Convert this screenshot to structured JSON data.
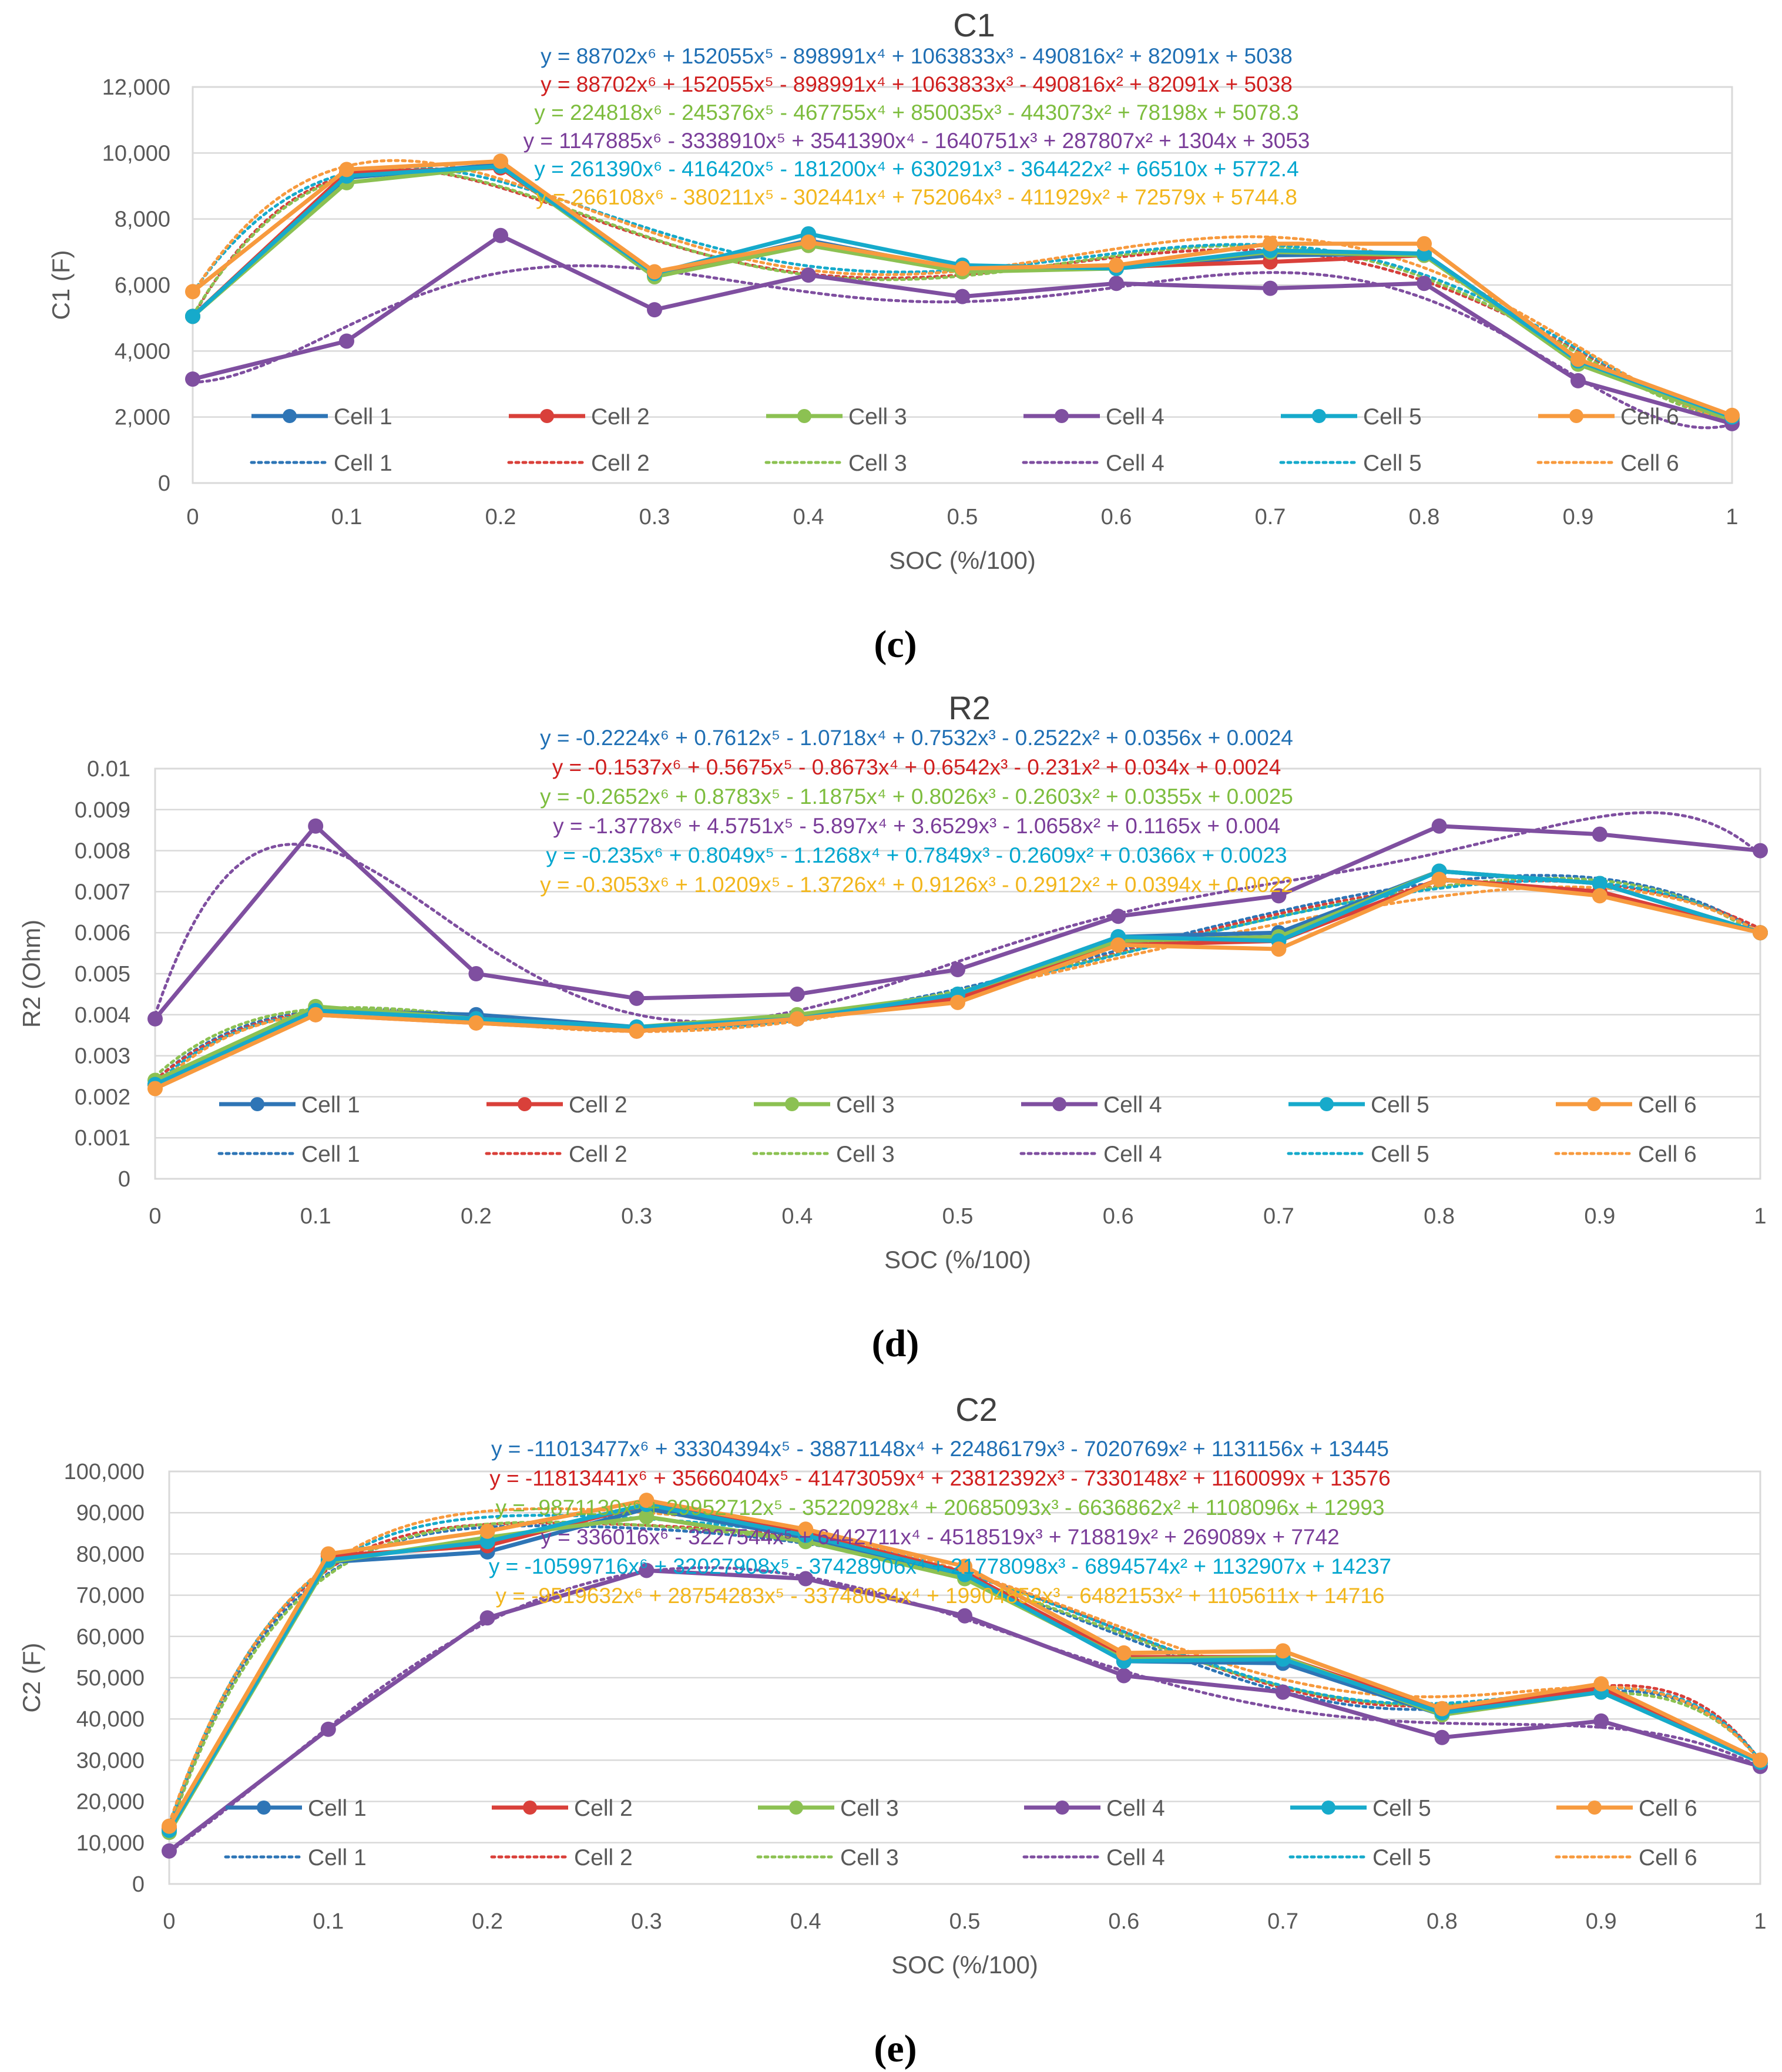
{
  "colors": {
    "cell1": "#2E75B6",
    "cell2": "#D9403A",
    "cell3": "#8CC152",
    "cell4": "#7F4FA0",
    "cell5": "#16AACB",
    "cell6": "#F79A3E"
  },
  "eq_colors": [
    "#1F6FB4",
    "#D01F1F",
    "#7DBD3E",
    "#7A3D99",
    "#00A6CF",
    "#F2B61C"
  ],
  "chart_data": [
    {
      "type": "line",
      "panel_label": "(c)",
      "title": "C1",
      "xlabel": "SOC (%/100)",
      "ylabel": "C1 (F)",
      "x": [
        0,
        0.1,
        0.2,
        0.3,
        0.4,
        0.5,
        0.6,
        0.7,
        0.8,
        0.9,
        1
      ],
      "xticks": [
        "0",
        "0.1",
        "0.2",
        "0.3",
        "0.4",
        "0.5",
        "0.6",
        "0.7",
        "0.8",
        "0.9",
        "1"
      ],
      "ylim": [
        0,
        12000
      ],
      "yticks": [
        0,
        2000,
        4000,
        6000,
        8000,
        10000,
        12000
      ],
      "ytick_labels": [
        "0",
        "2,000",
        "4,000",
        "6,000",
        "8,000",
        "10,000",
        "12,000"
      ],
      "grid": true,
      "legend_position": "lower, inside plot",
      "series": [
        {
          "name": "Cell 1",
          "values": [
            5050,
            9250,
            9650,
            6300,
            7350,
            6450,
            6500,
            6900,
            6950,
            3700,
            1900
          ]
        },
        {
          "name": "Cell 2",
          "values": [
            5050,
            9400,
            9550,
            6350,
            7200,
            6500,
            6550,
            6700,
            6900,
            3650,
            1950
          ]
        },
        {
          "name": "Cell 3",
          "values": [
            5050,
            9100,
            9600,
            6250,
            7200,
            6400,
            6500,
            7000,
            6900,
            3600,
            1900
          ]
        },
        {
          "name": "Cell 4",
          "values": [
            3150,
            4300,
            7500,
            5250,
            6300,
            5650,
            6050,
            5900,
            6050,
            3100,
            1800
          ]
        },
        {
          "name": "Cell 5",
          "values": [
            5050,
            9300,
            9600,
            6350,
            7550,
            6600,
            6500,
            7050,
            6950,
            3700,
            2000
          ]
        },
        {
          "name": "Cell 6",
          "values": [
            5800,
            9500,
            9750,
            6400,
            7300,
            6500,
            6600,
            7250,
            7250,
            3750,
            2050
          ]
        }
      ],
      "legend_line_labels": [
        "Cell 1",
        "Cell 2",
        "Cell 3",
        "Cell 4",
        "Cell 5",
        "Cell 6"
      ],
      "legend_trend_labels": [
        "Cell 1",
        "Cell 2",
        "Cell 3",
        "Cell 4",
        "Cell 5",
        "Cell 6"
      ],
      "trendline_coefficients": [
        [
          88702,
          152055,
          -898991,
          1063833,
          -490816,
          82091,
          5038
        ],
        [
          88702,
          152055,
          -898991,
          1063833,
          -490816,
          82091,
          5038
        ],
        [
          224818,
          -245376,
          -467755,
          850035,
          -443073,
          78198,
          5078.3
        ],
        [
          1147885,
          -3338910,
          3541390,
          -1640751,
          287807,
          1304,
          3053
        ],
        [
          261390,
          -416420,
          -181200,
          630291,
          -364422,
          66510,
          5772.4
        ],
        [
          266108,
          -380211,
          -302441,
          752064,
          -411929,
          72579,
          5744.8
        ]
      ],
      "equations": [
        "y = 88702x⁶ + 152055x⁵ - 898991x⁴ + 1063833x³ - 490816x² + 82091x + 5038",
        "y = 88702x⁶ + 152055x⁵ - 898991x⁴ + 1063833x³ - 490816x² + 82091x + 5038",
        "y = 224818x⁶ - 245376x⁵ - 467755x⁴ + 850035x³ - 443073x² + 78198x + 5078.3",
        "y = 1147885x⁶ - 3338910x⁵ + 3541390x⁴ - 1640751x³ + 287807x² + 1304x + 3053",
        "y = 261390x⁶ - 416420x⁵ - 181200x⁴ + 630291x³ - 364422x² + 66510x + 5772.4",
        "y = 266108x⁶ - 380211x⁵ - 302441x⁴ + 752064x³ - 411929x² + 72579x + 5744.8"
      ]
    },
    {
      "type": "line",
      "panel_label": "(d)",
      "title": "R2",
      "xlabel": "SOC (%/100)",
      "ylabel": "R2 (Ohm)",
      "x": [
        0,
        0.1,
        0.2,
        0.3,
        0.4,
        0.5,
        0.6,
        0.7,
        0.8,
        0.9,
        1
      ],
      "xticks": [
        "0",
        "0.1",
        "0.2",
        "0.3",
        "0.4",
        "0.5",
        "0.6",
        "0.7",
        "0.8",
        "0.9",
        "1"
      ],
      "ylim": [
        0,
        0.01
      ],
      "yticks": [
        0,
        0.001,
        0.002,
        0.003,
        0.004,
        0.005,
        0.006,
        0.007,
        0.008,
        0.009,
        0.01
      ],
      "ytick_labels": [
        "0",
        "0.001",
        "0.002",
        "0.003",
        "0.004",
        "0.005",
        "0.006",
        "0.007",
        "0.008",
        "0.009",
        "0.01"
      ],
      "grid": true,
      "legend_position": "lower, inside plot",
      "series": [
        {
          "name": "Cell 1",
          "values": [
            0.0023,
            0.0041,
            0.004,
            0.0037,
            0.0039,
            0.0045,
            0.0059,
            0.006,
            0.0075,
            0.0072,
            0.006
          ]
        },
        {
          "name": "Cell 2",
          "values": [
            0.0023,
            0.004,
            0.0038,
            0.0036,
            0.0039,
            0.0044,
            0.0057,
            0.0058,
            0.0073,
            0.007,
            0.006
          ]
        },
        {
          "name": "Cell 3",
          "values": [
            0.0024,
            0.0042,
            0.0039,
            0.0037,
            0.004,
            0.0045,
            0.0058,
            0.0059,
            0.0075,
            0.0072,
            0.006
          ]
        },
        {
          "name": "Cell 4",
          "values": [
            0.0039,
            0.0086,
            0.005,
            0.0044,
            0.0045,
            0.0051,
            0.0064,
            0.0069,
            0.0086,
            0.0084,
            0.008
          ]
        },
        {
          "name": "Cell 5",
          "values": [
            0.0023,
            0.0041,
            0.0039,
            0.0037,
            0.0039,
            0.0045,
            0.0059,
            0.0058,
            0.0075,
            0.0072,
            0.006
          ]
        },
        {
          "name": "Cell 6",
          "values": [
            0.0022,
            0.004,
            0.0038,
            0.0036,
            0.0039,
            0.0043,
            0.0057,
            0.0056,
            0.0073,
            0.0069,
            0.006
          ]
        }
      ],
      "legend_line_labels": [
        "Cell 1",
        "Cell 2",
        "Cell 3",
        "Cell 4",
        "Cell 5",
        "Cell 6"
      ],
      "legend_trend_labels": [
        "Cell 1",
        "Cell 2",
        "Cell 3",
        "Cell 4",
        "Cell 5",
        "Cell 6"
      ],
      "trendline_coefficients": [
        [
          -0.2224,
          0.7612,
          -1.0718,
          0.7532,
          -0.2522,
          0.0356,
          0.0024
        ],
        [
          -0.1537,
          0.5675,
          -0.8673,
          0.6542,
          -0.231,
          0.034,
          0.0024
        ],
        [
          -0.2652,
          0.8783,
          -1.1875,
          0.8026,
          -0.2603,
          0.0355,
          0.0025
        ],
        [
          -1.3778,
          4.5751,
          -5.897,
          3.6529,
          -1.0658,
          0.1165,
          0.004
        ],
        [
          -0.235,
          0.8049,
          -1.1268,
          0.7849,
          -0.2609,
          0.0366,
          0.0023
        ],
        [
          -0.3053,
          1.0209,
          -1.3726,
          0.9126,
          -0.2912,
          0.0394,
          0.0022
        ]
      ],
      "equations": [
        "y = -0.2224x⁶ + 0.7612x⁵ - 1.0718x⁴ + 0.7532x³ - 0.2522x² + 0.0356x + 0.0024",
        "y = -0.1537x⁶ + 0.5675x⁵ - 0.8673x⁴ + 0.6542x³ - 0.231x² + 0.034x + 0.0024",
        "y = -0.2652x⁶ + 0.8783x⁵ - 1.1875x⁴ + 0.8026x³ - 0.2603x² + 0.0355x + 0.0025",
        "y = -1.3778x⁶ + 4.5751x⁵ - 5.897x⁴ + 3.6529x³ - 1.0658x² + 0.1165x + 0.004",
        "y = -0.235x⁶ + 0.8049x⁵ - 1.1268x⁴ + 0.7849x³ - 0.2609x² + 0.0366x + 0.0023",
        "y = -0.3053x⁶ + 1.0209x⁵ - 1.3726x⁴ + 0.9126x³ - 0.2912x² + 0.0394x + 0.0022"
      ]
    },
    {
      "type": "line",
      "panel_label": "(e)",
      "title": "C2",
      "xlabel": "SOC (%/100)",
      "ylabel": "C2 (F)",
      "x": [
        0,
        0.1,
        0.2,
        0.3,
        0.4,
        0.5,
        0.6,
        0.7,
        0.8,
        0.9,
        1
      ],
      "xticks": [
        "0",
        "0.1",
        "0.2",
        "0.3",
        "0.4",
        "0.5",
        "0.6",
        "0.7",
        "0.8",
        "0.9",
        "1"
      ],
      "ylim": [
        0,
        100000
      ],
      "yticks": [
        0,
        10000,
        20000,
        30000,
        40000,
        50000,
        60000,
        70000,
        80000,
        90000,
        100000
      ],
      "ytick_labels": [
        "0",
        "10,000",
        "20,000",
        "30,000",
        "40,000",
        "50,000",
        "60,000",
        "70,000",
        "80,000",
        "90,000",
        "100,000"
      ],
      "grid": true,
      "legend_position": "lower, inside plot",
      "series": [
        {
          "name": "Cell 1",
          "values": [
            13000,
            78000,
            80500,
            91000,
            84000,
            75000,
            54000,
            53500,
            41000,
            47000,
            29500
          ]
        },
        {
          "name": "Cell 2",
          "values": [
            13500,
            79500,
            82000,
            92000,
            85000,
            75500,
            55000,
            55000,
            42000,
            47500,
            30000
          ]
        },
        {
          "name": "Cell 3",
          "values": [
            12500,
            78000,
            84000,
            89000,
            83000,
            74000,
            54500,
            55000,
            41000,
            46500,
            29500
          ]
        },
        {
          "name": "Cell 4",
          "values": [
            8000,
            37500,
            64500,
            76000,
            74000,
            65000,
            50500,
            46500,
            35500,
            39500,
            28500
          ]
        },
        {
          "name": "Cell 5",
          "values": [
            13000,
            78500,
            83000,
            92000,
            84500,
            75000,
            54000,
            54500,
            41500,
            46500,
            29500
          ]
        },
        {
          "name": "Cell 6",
          "values": [
            14000,
            80000,
            85500,
            93000,
            86000,
            77000,
            56000,
            56500,
            42500,
            48500,
            30000
          ]
        }
      ],
      "legend_line_labels": [
        "Cell 1",
        "Cell 2",
        "Cell 3",
        "Cell 4",
        "Cell 5",
        "Cell 6"
      ],
      "legend_trend_labels": [
        "Cell 1",
        "Cell 2",
        "Cell 3",
        "Cell 4",
        "Cell 5",
        "Cell 6"
      ],
      "trendline_coefficients": [
        [
          -11013477,
          33304394,
          -38871148,
          22486179,
          -7020769,
          1131156,
          13445
        ],
        [
          -11813441,
          35660404,
          -41473059,
          23812392,
          -7330148,
          1160099,
          13576
        ],
        [
          -9871130,
          29952712,
          -35220928,
          20685093,
          -6636862,
          1108096,
          12993
        ],
        [
          336016,
          -3227544,
          6442711,
          -4518519,
          718819,
          269089,
          7742
        ],
        [
          -10599716,
          32027908,
          -37428906,
          21778098,
          -6894574,
          1132907,
          14237
        ],
        [
          -9519632,
          28754283,
          -33748034,
          19904852,
          -6482153,
          1105611,
          14716
        ]
      ],
      "equations": [
        "y = -11013477x⁶ + 33304394x⁵ - 38871148x⁴ + 22486179x³ - 7020769x² + 1131156x + 13445",
        "y = -11813441x⁶ + 35660404x⁵ - 41473059x⁴ + 23812392x³ - 7330148x² + 1160099x + 13576",
        "y = -9871130x⁶ + 29952712x⁵ - 35220928x⁴ + 20685093x³ - 6636862x² + 1108096x + 12993",
        "y = 336016x⁶ - 3227544x⁵ + 6442711x⁴ - 4518519x³ + 718819x² + 269089x + 7742",
        "y = -10599716x⁶ + 32027908x⁵ - 37428906x⁴ + 21778098x³ - 6894574x² + 1132907x + 14237",
        "y = -9519632x⁶ + 28754283x⁵ - 33748034x⁴ + 19904852x³ - 6482153x² + 1105611x + 14716"
      ]
    }
  ]
}
